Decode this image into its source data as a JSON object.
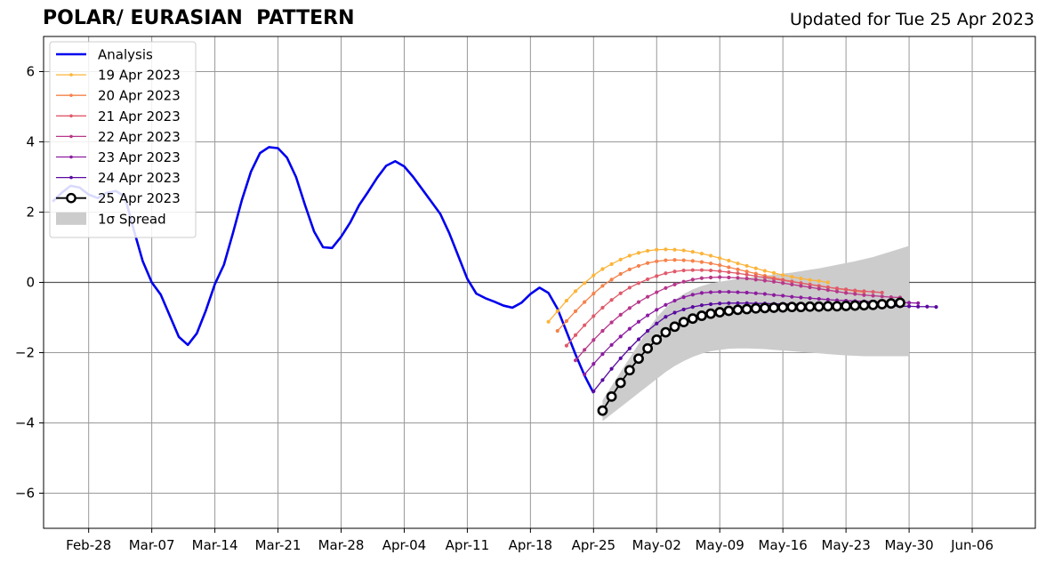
{
  "chart_data": {
    "type": "line",
    "title": "POLAR/ EURASIAN  PATTERN",
    "subtitle": "Updated for Tue 25 Apr 2023",
    "xlabel": "",
    "ylabel": "",
    "xlim": [
      "2023-02-23",
      "2023-06-13"
    ],
    "ylim": [
      -7,
      7
    ],
    "grid": true,
    "legend_position": "top-left",
    "x_ticks": [
      "Feb-28",
      "Mar-07",
      "Mar-14",
      "Mar-21",
      "Mar-28",
      "Apr-04",
      "Apr-11",
      "Apr-18",
      "Apr-25",
      "May-02",
      "May-09",
      "May-16",
      "May-23",
      "May-30",
      "Jun-06"
    ],
    "x_tick_dates": [
      "2023-02-28",
      "2023-03-07",
      "2023-03-14",
      "2023-03-21",
      "2023-03-28",
      "2023-04-04",
      "2023-04-11",
      "2023-04-18",
      "2023-04-25",
      "2023-05-02",
      "2023-05-09",
      "2023-05-16",
      "2023-05-23",
      "2023-05-30",
      "2023-06-06"
    ],
    "y_ticks": [
      -6,
      -4,
      -2,
      0,
      2,
      4,
      6
    ],
    "y_tick_labels": [
      "−6",
      "−4",
      "−2",
      "0",
      "2",
      "4",
      "6"
    ],
    "analysis": {
      "name": "Analysis",
      "color": "#0000ee",
      "start_date": "2023-02-24",
      "values": [
        2.3,
        2.55,
        2.75,
        2.7,
        2.5,
        2.4,
        2.55,
        2.6,
        2.45,
        1.5,
        0.6,
        0.0,
        -0.35,
        -0.95,
        -1.55,
        -1.78,
        -1.45,
        -0.8,
        -0.05,
        0.5,
        1.4,
        2.35,
        3.15,
        3.68,
        3.85,
        3.82,
        3.55,
        3.0,
        2.2,
        1.45,
        1.0,
        0.98,
        1.3,
        1.7,
        2.2,
        2.58,
        2.98,
        3.32,
        3.45,
        3.3,
        3.0,
        2.65,
        2.3,
        1.95,
        1.4,
        0.75,
        0.1,
        -0.32,
        -0.45,
        -0.55,
        -0.66,
        -0.72,
        -0.58,
        -0.33,
        -0.15,
        -0.3,
        -0.75,
        -1.4,
        -2.05,
        -2.65,
        -3.15
      ]
    },
    "forecasts": [
      {
        "name": "19 Apr 2023",
        "color": "#fcb43a",
        "start_date": "2023-04-20",
        "values": [
          -1.12,
          -0.82,
          -0.52,
          -0.25,
          -0.02,
          0.2,
          0.38,
          0.52,
          0.65,
          0.76,
          0.84,
          0.9,
          0.93,
          0.94,
          0.93,
          0.91,
          0.87,
          0.82,
          0.76,
          0.69,
          0.62,
          0.54,
          0.47,
          0.4,
          0.33,
          0.27,
          0.21,
          0.16,
          0.11,
          0.07,
          0.04,
          0.0
        ]
      },
      {
        "name": "20 Apr 2023",
        "color": "#f5824a",
        "start_date": "2023-04-21",
        "values": [
          -1.38,
          -1.1,
          -0.82,
          -0.56,
          -0.32,
          -0.1,
          0.08,
          0.24,
          0.37,
          0.47,
          0.55,
          0.6,
          0.63,
          0.64,
          0.63,
          0.61,
          0.58,
          0.54,
          0.49,
          0.43,
          0.37,
          0.31,
          0.25,
          0.19,
          0.13,
          0.08,
          0.03,
          -0.02,
          -0.06,
          -0.1,
          -0.14,
          -0.18,
          -0.21,
          -0.25,
          -0.28
        ]
      },
      {
        "name": "21 Apr 2023",
        "color": "#e05a6a",
        "start_date": "2023-04-22",
        "values": [
          -1.8,
          -1.5,
          -1.22,
          -0.96,
          -0.72,
          -0.5,
          -0.31,
          -0.15,
          -0.02,
          0.09,
          0.18,
          0.26,
          0.31,
          0.34,
          0.35,
          0.35,
          0.34,
          0.32,
          0.29,
          0.26,
          0.22,
          0.18,
          0.14,
          0.1,
          0.06,
          0.02,
          -0.02,
          -0.06,
          -0.1,
          -0.14,
          -0.17,
          -0.2,
          -0.23,
          -0.25,
          -0.27,
          -0.29
        ]
      },
      {
        "name": "22 Apr 2023",
        "color": "#b7378a",
        "start_date": "2023-04-23",
        "values": [
          -2.22,
          -1.92,
          -1.64,
          -1.38,
          -1.14,
          -0.92,
          -0.73,
          -0.56,
          -0.41,
          -0.28,
          -0.16,
          -0.06,
          0.02,
          0.08,
          0.12,
          0.14,
          0.15,
          0.14,
          0.13,
          0.11,
          0.08,
          0.05,
          0.02,
          -0.02,
          -0.06,
          -0.1,
          -0.14,
          -0.18,
          -0.22,
          -0.26,
          -0.3,
          -0.33,
          -0.36,
          -0.38,
          -0.4,
          -0.42,
          -0.43
        ]
      },
      {
        "name": "23 Apr 2023",
        "color": "#8c1ca0",
        "start_date": "2023-04-24",
        "values": [
          -2.62,
          -2.32,
          -2.04,
          -1.78,
          -1.54,
          -1.32,
          -1.12,
          -0.94,
          -0.78,
          -0.64,
          -0.52,
          -0.42,
          -0.35,
          -0.3,
          -0.28,
          -0.27,
          -0.27,
          -0.28,
          -0.29,
          -0.31,
          -0.33,
          -0.36,
          -0.38,
          -0.41,
          -0.43,
          -0.45,
          -0.47,
          -0.49,
          -0.51,
          -0.52,
          -0.53,
          -0.54,
          -0.55,
          -0.56,
          -0.57,
          -0.58,
          -0.58,
          -0.59
        ]
      },
      {
        "name": "24 Apr 2023",
        "color": "#5a0aa0",
        "start_date": "2023-04-25",
        "values": [
          -3.1,
          -2.78,
          -2.46,
          -2.16,
          -1.88,
          -1.62,
          -1.38,
          -1.17,
          -0.98,
          -0.86,
          -0.77,
          -0.7,
          -0.65,
          -0.62,
          -0.6,
          -0.59,
          -0.59,
          -0.59,
          -0.6,
          -0.6,
          -0.61,
          -0.61,
          -0.62,
          -0.62,
          -0.63,
          -0.63,
          -0.64,
          -0.64,
          -0.65,
          -0.65,
          -0.66,
          -0.66,
          -0.67,
          -0.67,
          -0.68,
          -0.68,
          -0.69,
          -0.69,
          -0.7
        ]
      },
      {
        "name": "25 Apr 2023",
        "color": "#000000",
        "start_date": "2023-04-26",
        "values": [
          -3.65,
          -3.25,
          -2.86,
          -2.5,
          -2.17,
          -1.88,
          -1.63,
          -1.42,
          -1.26,
          -1.13,
          -1.03,
          -0.95,
          -0.89,
          -0.85,
          -0.81,
          -0.78,
          -0.76,
          -0.74,
          -0.73,
          -0.72,
          -0.71,
          -0.7,
          -0.7,
          -0.69,
          -0.69,
          -0.68,
          -0.68,
          -0.67,
          -0.66,
          -0.65,
          -0.64,
          -0.62,
          -0.6,
          -0.58
        ]
      }
    ],
    "spread": {
      "name": "1σ Spread",
      "color": "#cccccc",
      "start_date": "2023-04-26",
      "upper": [
        -3.35,
        -2.95,
        -2.55,
        -2.15,
        -1.75,
        -1.35,
        -1.0,
        -0.72,
        -0.5,
        -0.33,
        -0.2,
        -0.1,
        -0.03,
        0.02,
        0.06,
        0.1,
        0.13,
        0.16,
        0.19,
        0.22,
        0.25,
        0.28,
        0.32,
        0.36,
        0.4,
        0.45,
        0.5,
        0.55,
        0.6,
        0.66,
        0.72,
        0.8,
        0.88,
        0.96,
        1.04
      ],
      "lower": [
        -3.95,
        -3.75,
        -3.55,
        -3.35,
        -3.15,
        -2.95,
        -2.75,
        -2.55,
        -2.38,
        -2.24,
        -2.12,
        -2.03,
        -1.96,
        -1.92,
        -1.89,
        -1.88,
        -1.88,
        -1.89,
        -1.9,
        -1.92,
        -1.94,
        -1.96,
        -1.98,
        -2.0,
        -2.02,
        -2.04,
        -2.06,
        -2.08,
        -2.09,
        -2.1,
        -2.1,
        -2.1,
        -2.1,
        -2.1,
        -2.1
      ]
    },
    "legend": [
      {
        "label": "Analysis",
        "color": "#0000ee",
        "kind": "line"
      },
      {
        "label": "19 Apr 2023",
        "color": "#fcb43a",
        "kind": "small-marker"
      },
      {
        "label": "20 Apr 2023",
        "color": "#f5824a",
        "kind": "small-marker"
      },
      {
        "label": "21 Apr 2023",
        "color": "#e05a6a",
        "kind": "small-marker"
      },
      {
        "label": "22 Apr 2023",
        "color": "#b7378a",
        "kind": "small-marker"
      },
      {
        "label": "23 Apr 2023",
        "color": "#8c1ca0",
        "kind": "small-marker"
      },
      {
        "label": "24 Apr 2023",
        "color": "#5a0aa0",
        "kind": "small-marker"
      },
      {
        "label": "25 Apr 2023",
        "color": "#000000",
        "kind": "big-marker"
      },
      {
        "label": "1σ Spread",
        "color": "#cccccc",
        "kind": "patch"
      }
    ]
  }
}
